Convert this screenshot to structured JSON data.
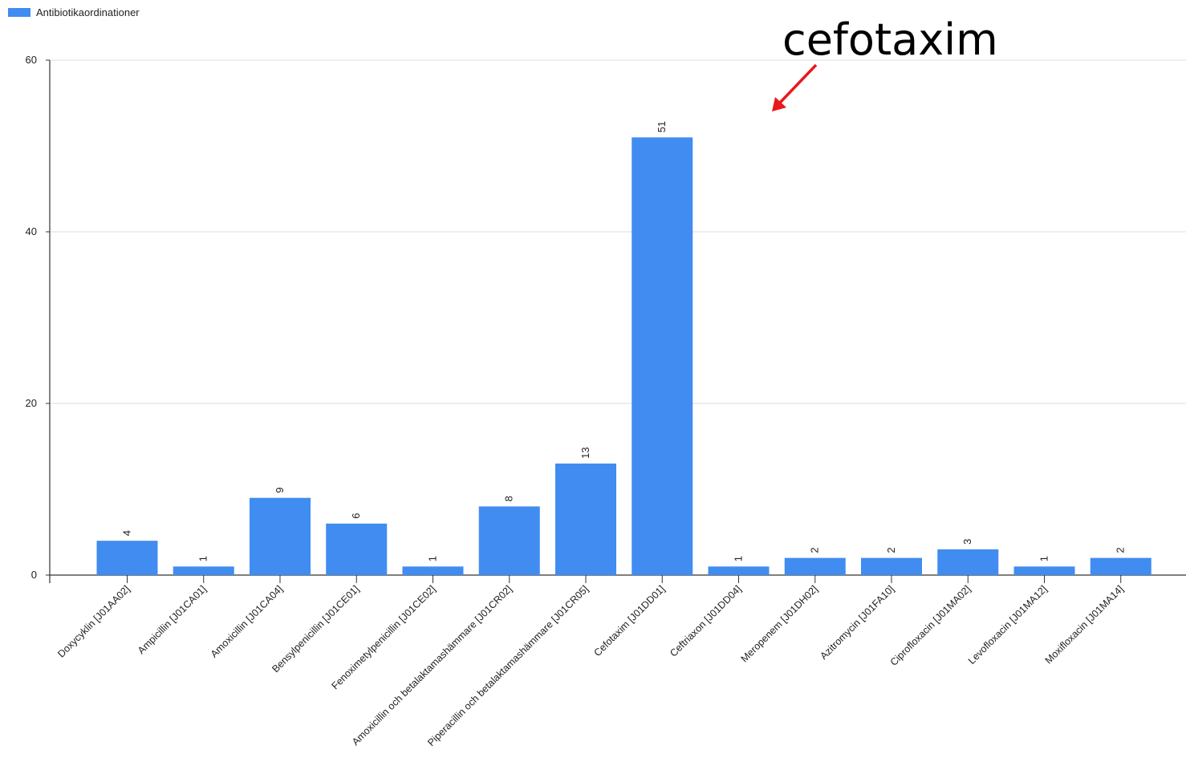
{
  "chart_data": {
    "type": "bar",
    "categories": [
      "Doxycyklin [J01AA02]",
      "Ampicillin [J01CA01]",
      "Amoxicillin [J01CA04]",
      "Bensylpenicillin [J01CE01]",
      "Fenoximetylpenicillin [J01CE02]",
      "Amoxicillin och betalaktamashämmare [J01CR02]",
      "Piperacillin och betalaktamashämmare [J01CR05]",
      "Cefotaxim [J01DD01]",
      "Ceftriaxon [J01DD04]",
      "Meropenem [J01DH02]",
      "Azitromycin [J01FA10]",
      "Ciprofloxacin [J01MA02]",
      "Levofloxacin [J01MA12]",
      "Moxifloxacin [J01MA14]"
    ],
    "series": [
      {
        "name": "Antibiotikaordinationer",
        "values": [
          4,
          1,
          9,
          6,
          1,
          8,
          13,
          51,
          1,
          2,
          2,
          3,
          1,
          2
        ]
      }
    ],
    "value_labels": [
      "4",
      "1",
      "9",
      "6",
      "1",
      "8",
      "13",
      "51",
      "1",
      "2",
      "2",
      "3",
      "1",
      "2"
    ],
    "y_ticks": [
      "0",
      "20",
      "40",
      "60"
    ],
    "ylim": [
      0,
      60
    ],
    "grid": true,
    "legend_position": "top-left",
    "bar_color": "#418cf0",
    "annotation": {
      "text": "cefotaxim",
      "target_category": "Cefotaxim [J01DD01]",
      "arrow_color": "#e8191c"
    }
  }
}
